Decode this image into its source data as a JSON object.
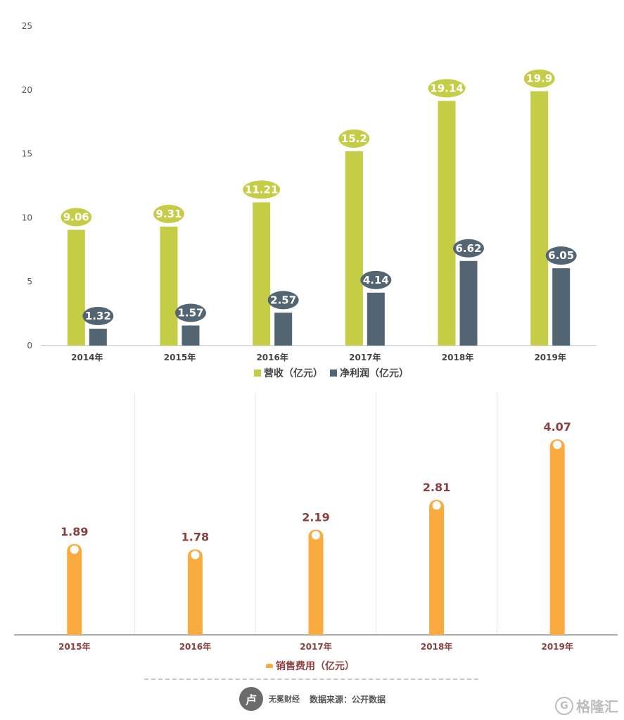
{
  "chart_data": [
    {
      "type": "bar",
      "categories": [
        "2014年",
        "2015年",
        "2016年",
        "2017年",
        "2018年",
        "2019年"
      ],
      "series": [
        {
          "name": "营收（亿元）",
          "color": "#c5cd47",
          "values": [
            9.06,
            9.31,
            11.21,
            15.2,
            19.14,
            19.9
          ]
        },
        {
          "name": "净利润（亿元）",
          "color": "#536573",
          "values": [
            1.32,
            1.57,
            2.57,
            4.14,
            6.62,
            6.05
          ]
        }
      ],
      "data_labels": [
        [
          "9.06",
          "9.31",
          "11.21",
          "15.2",
          "19.14",
          "19.9"
        ],
        [
          "1.32",
          "1.57",
          "2.57",
          "4.14",
          "6.62",
          "6.05"
        ]
      ],
      "yticks": [
        "0",
        "5",
        "10",
        "15",
        "20",
        "25"
      ],
      "ylim": [
        0,
        25
      ],
      "legend": "bottom"
    },
    {
      "type": "bar",
      "categories": [
        "2015年",
        "2016年",
        "2017年",
        "2018年",
        "2019年"
      ],
      "series": [
        {
          "name": "销售费用（亿元）",
          "color": "#f9ab40",
          "values": [
            1.89,
            1.78,
            2.19,
            2.81,
            4.07
          ]
        }
      ],
      "data_labels": [
        "1.89",
        "1.78",
        "2.19",
        "2.81",
        "4.07"
      ],
      "ylim": [
        0,
        4.6
      ],
      "legend": "bottom"
    }
  ],
  "footer": {
    "logo_glyph": "卢",
    "logo_name": "无冕财经",
    "source": "数据来源：公开数据"
  },
  "watermark": {
    "icon": "G",
    "text": "格隆汇"
  }
}
